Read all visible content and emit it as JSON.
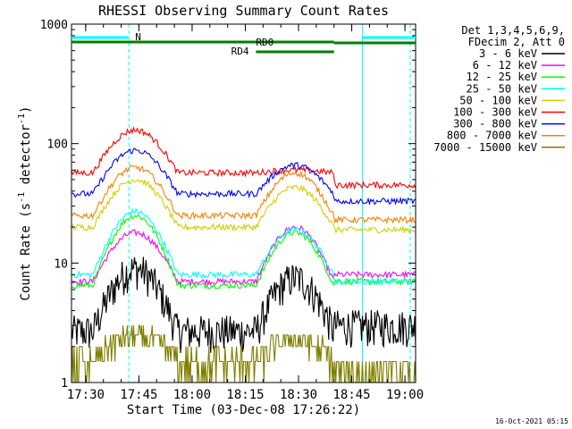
{
  "chart_data": {
    "type": "line",
    "title": "RHESSI Observing Summary Count Rates",
    "xlabel": "Start Time (03-Dec-08 17:26:22)",
    "ylabel_main": "Count Rate (s",
    "ylabel_sup1": "-1",
    "ylabel_mid": " detector",
    "ylabel_sup2": "-1",
    "ylabel_end": ")",
    "yscale": "log",
    "ylim": [
      1,
      1000
    ],
    "xlim_min": [
      1046,
      1143
    ],
    "x_ticks": [
      {
        "m": 1050,
        "label": "17:30"
      },
      {
        "m": 1065,
        "label": "17:45"
      },
      {
        "m": 1080,
        "label": "18:00"
      },
      {
        "m": 1095,
        "label": "18:15"
      },
      {
        "m": 1110,
        "label": "18:30"
      },
      {
        "m": 1125,
        "label": "18:45"
      },
      {
        "m": 1140,
        "label": "19:00"
      }
    ],
    "y_ticks": [
      {
        "v": 1,
        "label": "1"
      },
      {
        "v": 10,
        "label": "10"
      },
      {
        "v": 100,
        "label": "100"
      },
      {
        "v": 1000,
        "label": "1000"
      }
    ],
    "legend_header": [
      "Det 1,3,4,5,6,9,",
      "FDecim 2, Att 0"
    ],
    "legend_position": "right",
    "timestamp": "16-Oct-2021 05:15",
    "bars": [
      {
        "label": "N",
        "color": "#00ffff",
        "segments": [
          [
            1046,
            1062
          ],
          [
            1128,
            1143
          ]
        ]
      },
      {
        "label": "RD0",
        "color": "#007f00",
        "segments": [
          [
            1046,
            1120
          ]
        ]
      },
      {
        "label": "RD0_b",
        "color": "#007f00",
        "segments": [
          [
            1120,
            1143
          ]
        ]
      },
      {
        "label": "RD4",
        "color": "#007f00",
        "segments": [
          [
            1098,
            1120
          ]
        ]
      }
    ],
    "bar_labels": {
      "n": "N",
      "rd0": "RD0",
      "rd4": "RD4"
    },
    "vlines": [
      {
        "m": 1062.2,
        "color": "#00ffff",
        "style": "dashed"
      },
      {
        "m": 1128.0,
        "color": "#00ffff",
        "style": "solid"
      },
      {
        "m": 1141.5,
        "color": "#00ffff",
        "style": "dashed"
      }
    ],
    "series": [
      {
        "name": "3 - 6 keV",
        "color": "#000000",
        "kind": "noisy",
        "base": 2.7,
        "flare1": 9,
        "flare2": 7.5,
        "post": 3
      },
      {
        "name": "6 - 12 keV",
        "color": "#ff00ff",
        "kind": "smooth",
        "base": 7,
        "flare1": 18,
        "flare2": 20,
        "post": 8
      },
      {
        "name": "12 - 25 keV",
        "color": "#00ff00",
        "kind": "smooth",
        "base": 6.5,
        "flare1": 25,
        "flare2": 18,
        "post": 7
      },
      {
        "name": "25 - 50 keV",
        "color": "#00ffff",
        "kind": "smooth",
        "base": 8,
        "flare1": 27,
        "flare2": 19,
        "post": 7
      },
      {
        "name": "50 - 100 keV",
        "color": "#d0d000",
        "kind": "smooth",
        "base": 20,
        "flare1": 50,
        "flare2": 43,
        "post": 19
      },
      {
        "name": "100 - 300 keV",
        "color": "#ff0000",
        "kind": "smooth",
        "base": 57,
        "flare1": 130,
        "flare2": 60,
        "post": 45
      },
      {
        "name": "300 - 800 keV",
        "color": "#0000ff",
        "kind": "smooth",
        "base": 38,
        "flare1": 88,
        "flare2": 66,
        "post": 33
      },
      {
        "name": "800 - 7000 keV",
        "color": "#ff7f00",
        "kind": "smooth",
        "base": 25,
        "flare1": 63,
        "flare2": 57,
        "post": 23
      },
      {
        "name": "7000 - 15000 keV",
        "color": "#7f7f00",
        "kind": "steps",
        "base": 1.5,
        "flare1": 3.8,
        "flare2": 3.3,
        "post": 1.2
      }
    ]
  }
}
